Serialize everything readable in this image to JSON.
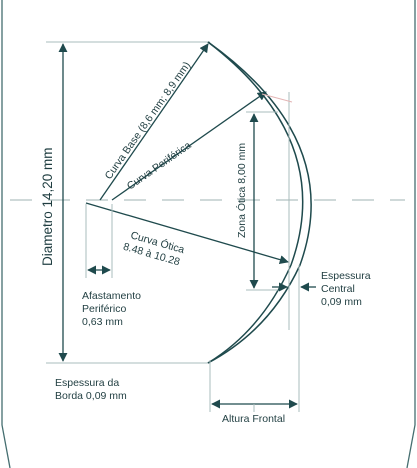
{
  "labels": {
    "diameter": "Diametro 14,20 mm",
    "base_curve": "Curva Base (8,6 mm; 8,9 mm)",
    "peripheral_curve": "Curva Periférica",
    "optic_curve_line1": "Curva Ótica",
    "optic_curve_line2": "8.48 à 10.28",
    "optic_zone": "Zona Ótica 8,00 mm",
    "peripheral_clearance_line1": "Afastamento",
    "peripheral_clearance_line2": "Periférico",
    "peripheral_clearance_line3": "0,63 mm",
    "center_thickness_line1": "Espessura",
    "center_thickness_line2": "Central",
    "center_thickness_line3": "0,09 mm",
    "edge_thickness_line1": "Espessura da",
    "edge_thickness_line2": "Borda 0,09 mm",
    "sagittal_height": "Altura Frontal"
  },
  "colors": {
    "line": "#1f4a4d",
    "dash": "#9fb3b3",
    "thin": "#a9bcbc",
    "pink": "#e3b5b5",
    "frame": "#456e70"
  }
}
